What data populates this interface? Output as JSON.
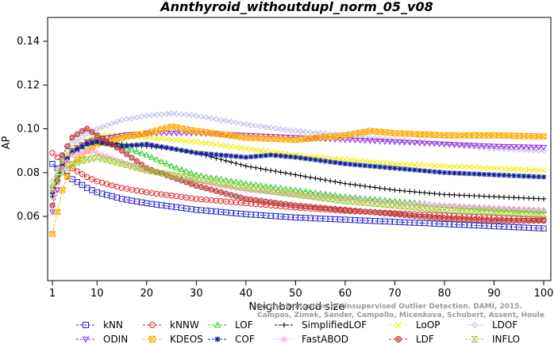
{
  "chart_data": {
    "type": "line",
    "title": "Annthyroid_withoutdupl_norm_05_v08",
    "xlabel": "Neighborhood size",
    "ylabel": "AP",
    "xlim": [
      1,
      100
    ],
    "ylim": [
      0.05,
      0.15
    ],
    "x_ticks": [
      1,
      10,
      20,
      30,
      40,
      50,
      60,
      70,
      80,
      90,
      100
    ],
    "y_ticks": [
      0.06,
      0.08,
      0.1,
      0.12,
      0.14
    ],
    "y_tick_labels": [
      "0.06",
      "0.08",
      "0.10",
      "0.12",
      "0.14"
    ],
    "legend_position": "bottom",
    "credit": "Campos, Zimek, Sander, Campello, Micenkova, Schubert, Assent, Houle",
    "credit_line2": "On the Evaluation of Unsupervised Outlier Detection. DAMI, 2015.",
    "series": [
      {
        "name": "kNN",
        "color": "#2222cc",
        "marker": "square",
        "points": [
          [
            1,
            0.084
          ],
          [
            2,
            0.082
          ],
          [
            3,
            0.08
          ],
          [
            5,
            0.077
          ],
          [
            8,
            0.073
          ],
          [
            10,
            0.071
          ],
          [
            15,
            0.068
          ],
          [
            20,
            0.066
          ],
          [
            30,
            0.063
          ],
          [
            40,
            0.061
          ],
          [
            50,
            0.0595
          ],
          [
            60,
            0.0585
          ],
          [
            70,
            0.0575
          ],
          [
            80,
            0.0565
          ],
          [
            90,
            0.0555
          ],
          [
            100,
            0.0545
          ]
        ]
      },
      {
        "name": "kNNW",
        "color": "#dd2222",
        "marker": "circle",
        "points": [
          [
            1,
            0.089
          ],
          [
            2,
            0.087
          ],
          [
            3,
            0.085
          ],
          [
            5,
            0.082
          ],
          [
            8,
            0.078
          ],
          [
            10,
            0.076
          ],
          [
            15,
            0.073
          ],
          [
            20,
            0.071
          ],
          [
            30,
            0.068
          ],
          [
            40,
            0.066
          ],
          [
            50,
            0.064
          ],
          [
            60,
            0.0625
          ],
          [
            70,
            0.0615
          ],
          [
            80,
            0.0605
          ],
          [
            90,
            0.0595
          ],
          [
            100,
            0.0585
          ]
        ]
      },
      {
        "name": "LOF",
        "color": "#22cc22",
        "marker": "triangle-up",
        "points": [
          [
            1,
            0.074
          ],
          [
            3,
            0.085
          ],
          [
            5,
            0.09
          ],
          [
            8,
            0.093
          ],
          [
            10,
            0.094
          ],
          [
            15,
            0.092
          ],
          [
            20,
            0.088
          ],
          [
            25,
            0.083
          ],
          [
            30,
            0.079
          ],
          [
            40,
            0.075
          ],
          [
            50,
            0.072
          ],
          [
            60,
            0.069
          ],
          [
            70,
            0.067
          ],
          [
            80,
            0.065
          ],
          [
            90,
            0.0635
          ],
          [
            100,
            0.0625
          ]
        ]
      },
      {
        "name": "SimplifiedLOF",
        "color": "#000000",
        "marker": "plus",
        "points": [
          [
            1,
            0.069
          ],
          [
            3,
            0.083
          ],
          [
            5,
            0.09
          ],
          [
            8,
            0.094
          ],
          [
            10,
            0.095
          ],
          [
            15,
            0.093
          ],
          [
            20,
            0.092
          ],
          [
            25,
            0.091
          ],
          [
            30,
            0.089
          ],
          [
            35,
            0.086
          ],
          [
            40,
            0.083
          ],
          [
            50,
            0.079
          ],
          [
            60,
            0.075
          ],
          [
            70,
            0.072
          ],
          [
            80,
            0.07
          ],
          [
            90,
            0.069
          ],
          [
            100,
            0.068
          ]
        ]
      },
      {
        "name": "LoOP",
        "color": "#eeee00",
        "marker": "x",
        "points": [
          [
            1,
            0.075
          ],
          [
            3,
            0.086
          ],
          [
            5,
            0.091
          ],
          [
            8,
            0.095
          ],
          [
            10,
            0.097
          ],
          [
            15,
            0.097
          ],
          [
            20,
            0.096
          ],
          [
            25,
            0.095
          ],
          [
            30,
            0.094
          ],
          [
            40,
            0.091
          ],
          [
            50,
            0.088
          ],
          [
            60,
            0.086
          ],
          [
            70,
            0.084
          ],
          [
            80,
            0.083
          ],
          [
            90,
            0.082
          ],
          [
            100,
            0.081
          ]
        ]
      },
      {
        "name": "LDOF",
        "color": "#bbbbee",
        "marker": "diamond",
        "points": [
          [
            1,
            0.076
          ],
          [
            3,
            0.087
          ],
          [
            5,
            0.093
          ],
          [
            8,
            0.098
          ],
          [
            10,
            0.1
          ],
          [
            15,
            0.104
          ],
          [
            20,
            0.106
          ],
          [
            25,
            0.107
          ],
          [
            30,
            0.106
          ],
          [
            40,
            0.102
          ],
          [
            50,
            0.099
          ],
          [
            60,
            0.097
          ],
          [
            70,
            0.095
          ],
          [
            80,
            0.093
          ],
          [
            90,
            0.091
          ],
          [
            100,
            0.09
          ]
        ]
      },
      {
        "name": "ODIN",
        "color": "#9922dd",
        "marker": "triangle-down",
        "points": [
          [
            1,
            0.062
          ],
          [
            3,
            0.082
          ],
          [
            5,
            0.09
          ],
          [
            8,
            0.094
          ],
          [
            10,
            0.095
          ],
          [
            15,
            0.097
          ],
          [
            20,
            0.098
          ],
          [
            25,
            0.098
          ],
          [
            30,
            0.098
          ],
          [
            40,
            0.097
          ],
          [
            50,
            0.096
          ],
          [
            60,
            0.095
          ],
          [
            70,
            0.094
          ],
          [
            80,
            0.093
          ],
          [
            90,
            0.092
          ],
          [
            100,
            0.0915
          ]
        ]
      },
      {
        "name": "KDEOS",
        "color": "#ffaa00",
        "marker": "square-x",
        "points": [
          [
            1,
            0.052
          ],
          [
            3,
            0.072
          ],
          [
            5,
            0.084
          ],
          [
            8,
            0.09
          ],
          [
            10,
            0.093
          ],
          [
            15,
            0.096
          ],
          [
            20,
            0.098
          ],
          [
            25,
            0.101
          ],
          [
            30,
            0.099
          ],
          [
            40,
            0.096
          ],
          [
            50,
            0.095
          ],
          [
            60,
            0.097
          ],
          [
            65,
            0.099
          ],
          [
            70,
            0.098
          ],
          [
            80,
            0.097
          ],
          [
            90,
            0.097
          ],
          [
            100,
            0.0965
          ]
        ]
      },
      {
        "name": "COF",
        "color": "#112299",
        "marker": "asterisk",
        "points": [
          [
            1,
            0.071
          ],
          [
            3,
            0.083
          ],
          [
            5,
            0.089
          ],
          [
            8,
            0.093
          ],
          [
            10,
            0.094
          ],
          [
            15,
            0.092
          ],
          [
            20,
            0.093
          ],
          [
            25,
            0.091
          ],
          [
            30,
            0.089
          ],
          [
            40,
            0.087
          ],
          [
            45,
            0.088
          ],
          [
            50,
            0.087
          ],
          [
            60,
            0.084
          ],
          [
            70,
            0.082
          ],
          [
            80,
            0.08
          ],
          [
            90,
            0.079
          ],
          [
            100,
            0.078
          ]
        ]
      },
      {
        "name": "FastABOD",
        "color": "#ffaaee",
        "marker": "diamond-filled",
        "points": [
          [
            1,
            0.072
          ],
          [
            3,
            0.082
          ],
          [
            5,
            0.088
          ],
          [
            8,
            0.09
          ],
          [
            10,
            0.089
          ],
          [
            15,
            0.085
          ],
          [
            20,
            0.081
          ],
          [
            30,
            0.076
          ],
          [
            40,
            0.072
          ],
          [
            50,
            0.07
          ],
          [
            60,
            0.068
          ],
          [
            70,
            0.066
          ],
          [
            80,
            0.065
          ],
          [
            90,
            0.064
          ],
          [
            100,
            0.063
          ]
        ]
      },
      {
        "name": "LDF",
        "color": "#bb3333",
        "marker": "circle-filled",
        "points": [
          [
            1,
            0.065
          ],
          [
            3,
            0.088
          ],
          [
            5,
            0.096
          ],
          [
            7,
            0.099
          ],
          [
            8,
            0.1
          ],
          [
            10,
            0.097
          ],
          [
            15,
            0.09
          ],
          [
            20,
            0.082
          ],
          [
            30,
            0.074
          ],
          [
            40,
            0.068
          ],
          [
            50,
            0.065
          ],
          [
            60,
            0.063
          ],
          [
            70,
            0.061
          ],
          [
            80,
            0.059
          ],
          [
            90,
            0.058
          ],
          [
            100,
            0.058
          ]
        ]
      },
      {
        "name": "INFLO",
        "color": "#99cc33",
        "marker": "hourglass",
        "points": [
          [
            1,
            0.073
          ],
          [
            3,
            0.08
          ],
          [
            5,
            0.084
          ],
          [
            8,
            0.086
          ],
          [
            10,
            0.087
          ],
          [
            15,
            0.084
          ],
          [
            20,
            0.081
          ],
          [
            25,
            0.079
          ],
          [
            30,
            0.077
          ],
          [
            40,
            0.073
          ],
          [
            50,
            0.07
          ],
          [
            60,
            0.067
          ],
          [
            70,
            0.065
          ],
          [
            80,
            0.063
          ],
          [
            90,
            0.062
          ],
          [
            100,
            0.061
          ]
        ]
      }
    ]
  }
}
